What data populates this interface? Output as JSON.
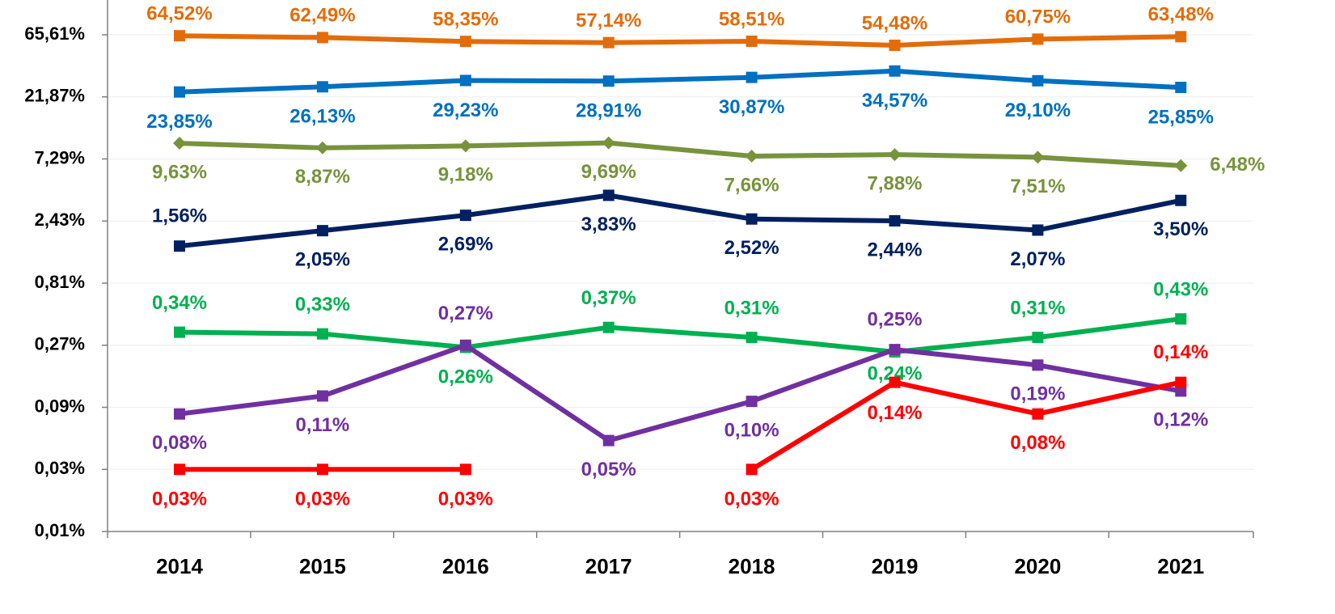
{
  "chart_data": {
    "type": "line",
    "categories": [
      "2014",
      "2015",
      "2016",
      "2017",
      "2018",
      "2019",
      "2020",
      "2021"
    ],
    "log_scale": true,
    "grid": true,
    "ylim": [
      0.01,
      65.61
    ],
    "yticks": [
      {
        "value": 0.01,
        "label": "0,01%"
      },
      {
        "value": 0.03,
        "label": "0,03%"
      },
      {
        "value": 0.09,
        "label": "0,09%"
      },
      {
        "value": 0.27,
        "label": "0,27%"
      },
      {
        "value": 0.81,
        "label": "0,81%"
      },
      {
        "value": 2.43,
        "label": "2,43%"
      },
      {
        "value": 7.29,
        "label": "7,29%"
      },
      {
        "value": 21.87,
        "label": "21,87%"
      },
      {
        "value": 65.61,
        "label": "65,61%"
      }
    ],
    "series": [
      {
        "color": "#e36c0a",
        "marker": "square",
        "values": [
          64.52,
          62.49,
          58.35,
          57.14,
          58.51,
          54.48,
          60.75,
          63.48
        ],
        "value_labels": [
          "64,52%",
          "62,49%",
          "58,35%",
          "57,14%",
          "58,51%",
          "54,48%",
          "60,75%",
          "63,48%"
        ]
      },
      {
        "color": "#0070c0",
        "marker": "square",
        "values": [
          23.85,
          26.13,
          29.23,
          28.91,
          30.87,
          34.57,
          29.1,
          25.85
        ],
        "value_labels": [
          "23,85%",
          "26,13%",
          "29,23%",
          "28,91%",
          "30,87%",
          "34,57%",
          "29,10%",
          "25,85%"
        ]
      },
      {
        "color": "#77933c",
        "marker": "diamond",
        "values": [
          9.63,
          8.87,
          9.18,
          9.69,
          7.66,
          7.88,
          7.51,
          6.48
        ],
        "value_labels": [
          "9,63%",
          "8,87%",
          "9,18%",
          "9,69%",
          "7,66%",
          "7,88%",
          "7,51%",
          "6,48%"
        ]
      },
      {
        "color": "#002060",
        "marker": "square",
        "values": [
          1.56,
          2.05,
          2.69,
          3.83,
          2.52,
          2.44,
          2.07,
          3.5
        ],
        "value_labels": [
          "1,56%",
          "2,05%",
          "2,69%",
          "3,83%",
          "2,52%",
          "2,44%",
          "2,07%",
          "3,50%"
        ]
      },
      {
        "color": "#00b050",
        "marker": "square",
        "values": [
          0.34,
          0.33,
          0.26,
          0.37,
          0.31,
          0.24,
          0.31,
          0.43
        ],
        "value_labels": [
          "0,34%",
          "0,33%",
          "0,26%",
          "0,37%",
          "0,31%",
          "0,24%",
          "0,31%",
          "0,43%"
        ]
      },
      {
        "color": "#7030a0",
        "marker": "square",
        "values": [
          0.08,
          0.11,
          0.27,
          0.05,
          0.1,
          0.25,
          0.19,
          0.12
        ],
        "value_labels": [
          "0,08%",
          "0,11%",
          "0,27%",
          "0,05%",
          "0,10%",
          "0,25%",
          "0,19%",
          "0,12%"
        ]
      },
      {
        "color": "#ff0000",
        "marker": "square",
        "values": [
          0.03,
          0.03,
          0.03,
          null,
          0.03,
          0.14,
          0.08,
          0.14
        ],
        "value_labels": [
          "0,03%",
          "0,03%",
          "0,03%",
          null,
          "0,03%",
          "0,14%",
          "0,08%",
          "0,14%"
        ]
      }
    ]
  }
}
